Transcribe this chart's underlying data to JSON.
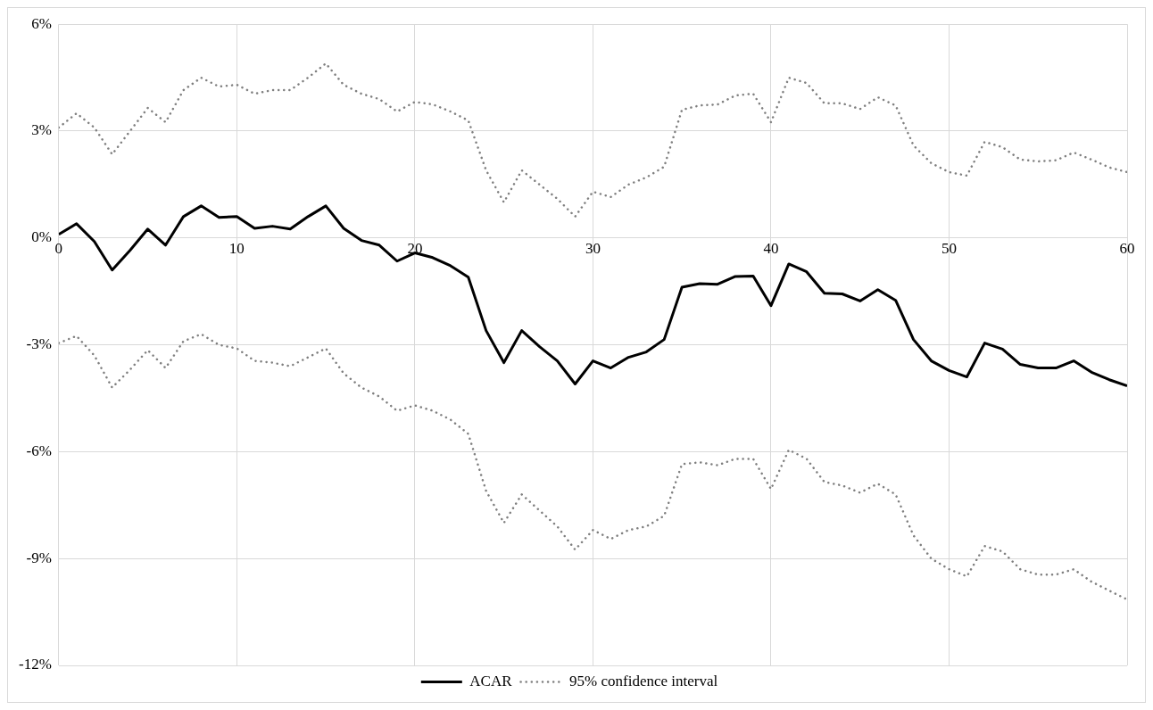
{
  "chart_data": {
    "type": "line",
    "x": [
      0,
      1,
      2,
      3,
      4,
      5,
      6,
      7,
      8,
      9,
      10,
      11,
      12,
      13,
      14,
      15,
      16,
      17,
      18,
      19,
      20,
      21,
      22,
      23,
      24,
      25,
      26,
      27,
      28,
      29,
      30,
      31,
      32,
      33,
      34,
      35,
      36,
      37,
      38,
      39,
      40,
      41,
      42,
      43,
      44,
      45,
      46,
      47,
      48,
      49,
      50,
      51,
      52,
      53,
      54,
      55,
      56,
      57,
      58,
      59,
      60
    ],
    "series": [
      {
        "name": "ACAR",
        "color": "#000000",
        "line_style": "solid",
        "values": [
          0.1,
          0.4,
          -0.1,
          -0.9,
          -0.35,
          0.25,
          -0.2,
          0.6,
          0.9,
          0.58,
          0.6,
          0.27,
          0.33,
          0.25,
          0.6,
          0.9,
          0.27,
          -0.07,
          -0.2,
          -0.65,
          -0.42,
          -0.55,
          -0.78,
          -1.1,
          -2.6,
          -3.5,
          -2.6,
          -3.05,
          -3.45,
          -4.1,
          -3.45,
          -3.65,
          -3.35,
          -3.2,
          -2.85,
          -1.38,
          -1.28,
          -1.3,
          -1.08,
          -1.07,
          -1.9,
          -0.73,
          -0.95,
          -1.55,
          -1.57,
          -1.77,
          -1.45,
          -1.75,
          -2.85,
          -3.45,
          -3.72,
          -3.9,
          -2.95,
          -3.12,
          -3.55,
          -3.65,
          -3.65,
          -3.45,
          -3.77,
          -3.98,
          -4.15
        ]
      },
      {
        "name": "95% confidence interval",
        "color": "#7f7f7f",
        "line_style": "dotted",
        "values": [
          3.1,
          3.5,
          3.1,
          2.35,
          3.0,
          3.65,
          3.25,
          4.15,
          4.5,
          4.25,
          4.3,
          4.05,
          4.15,
          4.15,
          4.5,
          4.9,
          4.3,
          4.05,
          3.9,
          3.55,
          3.82,
          3.75,
          3.55,
          3.3,
          1.9,
          1.0,
          1.9,
          1.5,
          1.1,
          0.6,
          1.3,
          1.15,
          1.5,
          1.7,
          2.0,
          3.6,
          3.72,
          3.75,
          4.0,
          4.05,
          3.25,
          4.5,
          4.35,
          3.78,
          3.78,
          3.62,
          3.95,
          3.72,
          2.6,
          2.1,
          1.85,
          1.75,
          2.7,
          2.55,
          2.2,
          2.15,
          2.18,
          2.4,
          2.2,
          1.98,
          1.85
        ]
      },
      {
        "color": "#7f7f7f",
        "line_style": "dotted",
        "values": [
          -2.95,
          -2.75,
          -3.3,
          -4.2,
          -3.7,
          -3.15,
          -3.65,
          -2.9,
          -2.7,
          -3.0,
          -3.1,
          -3.45,
          -3.5,
          -3.6,
          -3.35,
          -3.1,
          -3.8,
          -4.2,
          -4.45,
          -4.85,
          -4.7,
          -4.85,
          -5.1,
          -5.5,
          -7.1,
          -8.0,
          -7.2,
          -7.65,
          -8.1,
          -8.75,
          -8.2,
          -8.45,
          -8.2,
          -8.1,
          -7.8,
          -6.35,
          -6.3,
          -6.38,
          -6.2,
          -6.2,
          -7.05,
          -5.95,
          -6.2,
          -6.85,
          -6.95,
          -7.15,
          -6.9,
          -7.2,
          -8.35,
          -9.0,
          -9.3,
          -9.5,
          -8.65,
          -8.8,
          -9.3,
          -9.45,
          -9.45,
          -9.3,
          -9.65,
          -9.9,
          -10.15
        ]
      }
    ],
    "xlim": [
      0,
      60
    ],
    "xticks": [
      0,
      10,
      20,
      30,
      40,
      50,
      60
    ],
    "ylim": [
      -12,
      6
    ],
    "yticks": [
      {
        "value": -12,
        "label": "-12%"
      },
      {
        "value": -9,
        "label": "-9%"
      },
      {
        "value": -6,
        "label": "-6%"
      },
      {
        "value": -3,
        "label": "-3%"
      },
      {
        "value": 0,
        "label": "0%"
      },
      {
        "value": 3,
        "label": "3%"
      },
      {
        "value": 6,
        "label": "6%"
      }
    ],
    "grid": true,
    "legend": "bottom",
    "marker": "none"
  }
}
